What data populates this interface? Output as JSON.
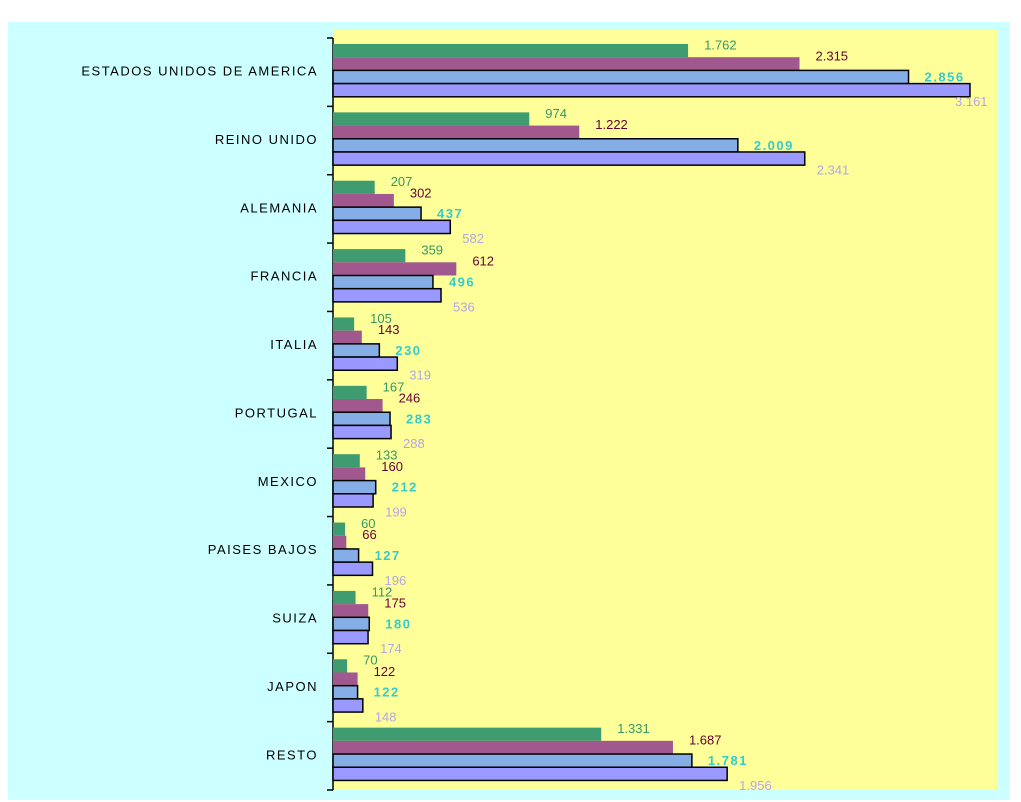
{
  "chart_data": {
    "type": "hbar",
    "categories": [
      "ESTADOS UNIDOS DE AMERICA",
      "REINO UNIDO",
      "ALEMANIA",
      "FRANCIA",
      "ITALIA",
      "PORTUGAL",
      "MEXICO",
      "PAISES BAJOS",
      "SUIZA",
      "JAPON",
      "RESTO"
    ],
    "xlim": [
      0,
      3300
    ],
    "series": [
      {
        "color": "#3f9c70",
        "label_color": "#339966",
        "border": false,
        "values": [
          1762,
          974,
          207,
          359,
          105,
          167,
          133,
          60,
          112,
          70,
          1331
        ],
        "value_labels": [
          "1.762",
          "974",
          "207",
          "359",
          "105",
          "167",
          "133",
          "60",
          "112",
          "70",
          "1.331"
        ]
      },
      {
        "color": "#a0588e",
        "label_color": "#660033",
        "border": false,
        "values": [
          2315,
          1222,
          302,
          612,
          143,
          246,
          160,
          66,
          175,
          122,
          1687
        ],
        "value_labels": [
          "2.315",
          "1.222",
          "302",
          "612",
          "143",
          "246",
          "160",
          "66",
          "175",
          "122",
          "1.687"
        ]
      },
      {
        "color": "#86aee6",
        "label_color": "#33cccc",
        "border": true,
        "bold": true,
        "values": [
          2856,
          2009,
          437,
          496,
          230,
          283,
          212,
          127,
          180,
          122,
          1781
        ],
        "value_labels": [
          "2.856",
          "2.009",
          "437",
          "496",
          "230",
          "283",
          "212",
          "127",
          "180",
          "122",
          "1.781"
        ]
      },
      {
        "color": "#9999ff",
        "label_color": "#b3a6e6",
        "border": true,
        "values": [
          3161,
          2341,
          582,
          536,
          319,
          288,
          199,
          196,
          174,
          148,
          1956
        ],
        "value_labels": [
          "3.161",
          "2.341",
          "582",
          "536",
          "319",
          "288",
          "199",
          "196",
          "174",
          "148",
          "1.956"
        ]
      }
    ]
  }
}
